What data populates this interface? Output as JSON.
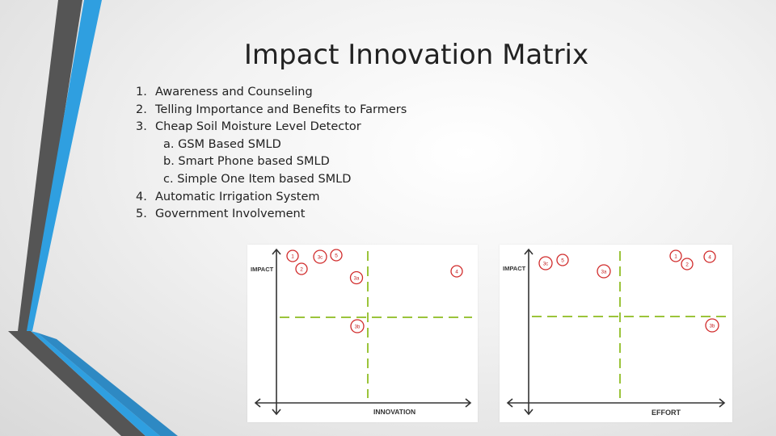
{
  "slide": {
    "title": "Impact Innovation Matrix",
    "items": [
      {
        "num": "1.",
        "text": "Awareness and Counseling"
      },
      {
        "num": "2.",
        "text": "Telling Importance and Benefits to Farmers"
      },
      {
        "num": "3.",
        "text": "Cheap Soil Moisture Level Detector"
      },
      {
        "num": "",
        "text": "a. GSM Based SMLD",
        "sub": true
      },
      {
        "num": "",
        "text": "b. Smart Phone based SMLD",
        "sub": true
      },
      {
        "num": "",
        "text": "c. Simple One Item based SMLD",
        "sub": true
      },
      {
        "num": "4.",
        "text": "Automatic Irrigation System"
      },
      {
        "num": "5.",
        "text": "Government Involvement"
      }
    ]
  },
  "matrices": {
    "innovation": {
      "y_label": "IMPACT",
      "x_label": "INNOVATION",
      "marks": [
        {
          "id": "1"
        },
        {
          "id": "2"
        },
        {
          "id": "3c"
        },
        {
          "id": "5"
        },
        {
          "id": "3a"
        },
        {
          "id": "3b"
        },
        {
          "id": "4"
        }
      ]
    },
    "effort": {
      "y_label": "IMPACT",
      "x_label": "EFFORT",
      "marks": [
        {
          "id": "3c"
        },
        {
          "id": "5"
        },
        {
          "id": "3a"
        },
        {
          "id": "1"
        },
        {
          "id": "2"
        },
        {
          "id": "4"
        },
        {
          "id": "3b"
        }
      ]
    }
  },
  "colors": {
    "accent_blue": "#2f9fe0",
    "accent_dark": "#4d4d4d",
    "divider": "#9bc43b",
    "mark": "#d12b2b"
  }
}
